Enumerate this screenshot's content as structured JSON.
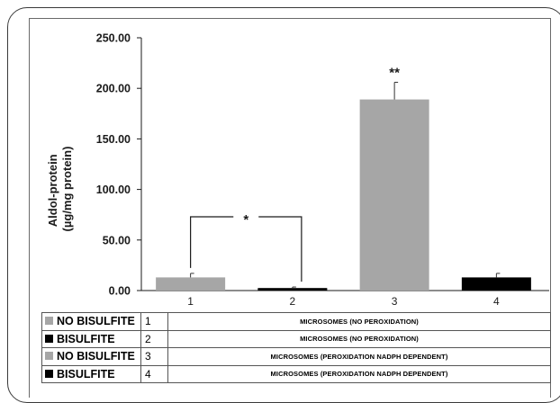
{
  "chart_data": {
    "type": "bar",
    "categories": [
      "1",
      "2",
      "3",
      "4"
    ],
    "values": [
      13,
      2.5,
      189,
      13
    ],
    "errors": [
      4,
      1,
      17,
      4
    ],
    "bar_colors": [
      "#a6a6a6",
      "#000000",
      "#a6a6a6",
      "#000000"
    ],
    "ylabel_lines": [
      "Aldol-protein",
      "(µg/mg protein)"
    ],
    "ylim": [
      0,
      250
    ],
    "yticks": [
      "0.00",
      "50.00",
      "100.00",
      "150.00",
      "200.00",
      "250.00"
    ],
    "annotations": [
      {
        "text": "*",
        "between": [
          "1",
          "2"
        ]
      },
      {
        "text": "**",
        "over": "3"
      }
    ]
  },
  "legend_table": [
    {
      "key": "NO BISULFITE",
      "color": "#a6a6a6",
      "num": "1",
      "desc": "MICROSOMES (NO PEROXIDATION)"
    },
    {
      "key": "BISULFITE",
      "color": "#000000",
      "num": "2",
      "desc": "MICROSOMES (NO PEROXIDATION)"
    },
    {
      "key": "NO BISULFITE",
      "color": "#a6a6a6",
      "num": "3",
      "desc": "MICROSOMES (PEROXIDATION NADPH DEPENDENT)"
    },
    {
      "key": "BISULFITE",
      "color": "#000000",
      "num": "4",
      "desc": "MICROSOMES (PEROXIDATION NADPH DEPENDENT)"
    }
  ]
}
